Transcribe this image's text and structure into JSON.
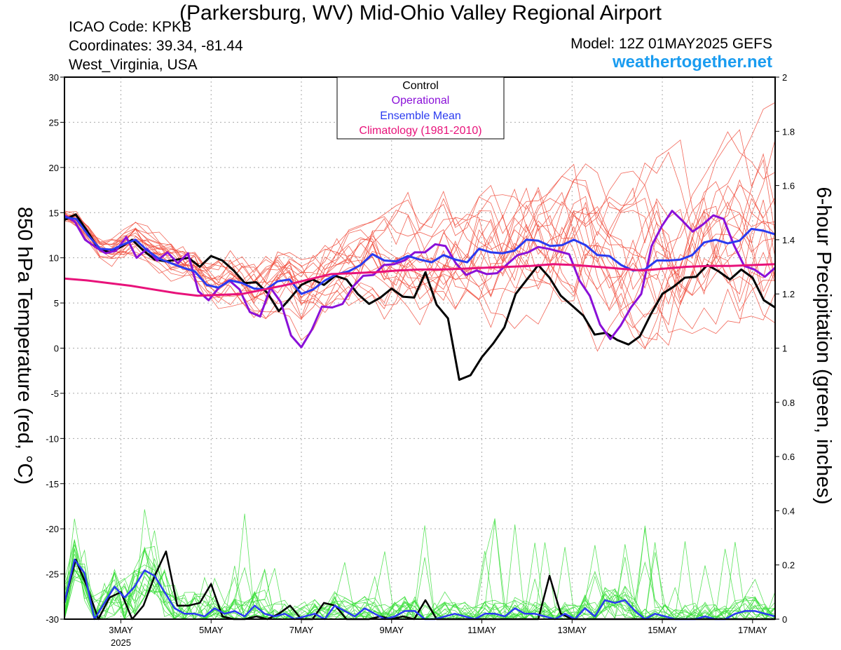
{
  "header": {
    "title": "(Parkersburg, WV) Mid-Ohio Valley Regional Airport",
    "icao": "ICAO Code: KPKB",
    "coordinates": "Coordinates: 39.34, -81.44",
    "location": "West_Virginia, USA",
    "model": "Model: 12Z 01MAY2025 GEFS",
    "site": "weathertogether.net"
  },
  "colors": {
    "member_temp": "#f04a3a",
    "member_precip": "#33dd33",
    "control": "#000000",
    "operational": "#8a10d8",
    "ensemble_mean": "#2a3af0",
    "climatology": "#e8127a"
  },
  "chart_data": {
    "type": "line",
    "x_axis": {
      "range": [
        "2025-05-01T18Z",
        "2025-05-17T12Z"
      ],
      "ticks": [
        {
          "x": "2025-05-03",
          "label": "3MAY",
          "sublabel": "2025"
        },
        {
          "x": "2025-05-05",
          "label": "5MAY"
        },
        {
          "x": "2025-05-07",
          "label": "7MAY"
        },
        {
          "x": "2025-05-09",
          "label": "9MAY"
        },
        {
          "x": "2025-05-11",
          "label": "11MAY"
        },
        {
          "x": "2025-05-13",
          "label": "13MAY"
        },
        {
          "x": "2025-05-15",
          "label": "15MAY"
        },
        {
          "x": "2025-05-17",
          "label": "17MAY"
        }
      ]
    },
    "y_left": {
      "label": "850 hPa Temperature (red, °C)",
      "range": [
        -30,
        30
      ],
      "ticks": [
        "30",
        "25",
        "20",
        "15",
        "10",
        "5",
        "0",
        "-5",
        "-10",
        "-15",
        "-20",
        "-25",
        "-30"
      ]
    },
    "y_right": {
      "label": "6-hour Precipitation (green, inches)",
      "range": [
        0,
        2
      ],
      "ticks": [
        "2",
        "1.8",
        "1.6",
        "1.4",
        "1.2",
        "1",
        "0.8",
        "0.6",
        "0.4",
        "0.2",
        "0"
      ]
    },
    "grid": true,
    "legend": {
      "placement": "top-center",
      "entries": [
        "Control",
        "Operational",
        "Ensemble Mean",
        "Climatology (1981-2010)"
      ]
    },
    "series": [
      {
        "name": "Control",
        "values": [
          14.2,
          14.8,
          13.0,
          11.0,
          10.6,
          11.2,
          12.0,
          10.8,
          9.8,
          9.6,
          9.8,
          10.0,
          9.0,
          10.2,
          9.7,
          8.6,
          7.2,
          7.3,
          6.1,
          4.1,
          5.5,
          7.0,
          7.6,
          7.0,
          8.0,
          7.6,
          6.0,
          4.9,
          5.6,
          6.6,
          5.7,
          5.6,
          8.4,
          4.8,
          3.3,
          -3.5,
          -3.0,
          -1.0,
          0.5,
          2.3,
          6.0,
          7.6,
          9.2,
          7.8,
          5.8,
          4.7,
          3.6,
          1.5,
          1.7,
          0.9,
          0.4,
          1.3,
          3.8,
          6.0,
          6.8,
          7.8,
          7.9,
          9.2,
          8.5,
          7.6,
          8.7,
          7.8,
          5.3,
          4.5
        ]
      },
      {
        "name": "Operational",
        "values": [
          14.7,
          14.0,
          12.0,
          11.2,
          10.5,
          10.8,
          12.3,
          10.0,
          11.0,
          9.7,
          10.6,
          9.4,
          10.5,
          6.3,
          5.3,
          6.7,
          7.5,
          6.5,
          4.0,
          3.5,
          6.7,
          5.1,
          1.4,
          0.1,
          2.0,
          4.6,
          4.5,
          4.9,
          6.8,
          8.0,
          8.1,
          9.2,
          9.3,
          9.7,
          10.6,
          10.6,
          11.5,
          11.3,
          9.4,
          8.1,
          8.6,
          8.2,
          8.3,
          9.3,
          10.3,
          10.6,
          11.2,
          11.0,
          10.7,
          10.4,
          7.5,
          5.8,
          2.6,
          1.0,
          2.5,
          4.5,
          6.0,
          11.3,
          13.5,
          15.2,
          14.1,
          12.9,
          13.7,
          14.7,
          14.3,
          11.4,
          9.1,
          8.7,
          7.9,
          8.9
        ]
      },
      {
        "name": "Ensemble Mean",
        "values": [
          14.5,
          14.3,
          12.5,
          11.0,
          10.9,
          11.5,
          12.0,
          10.8,
          9.9,
          9.4,
          8.9,
          8.5,
          7.0,
          6.7,
          7.5,
          7.2,
          6.6,
          6.5,
          7.4,
          7.6,
          6.0,
          6.5,
          7.5,
          8.2,
          8.5,
          9.2,
          10.4,
          9.7,
          9.6,
          10.2,
          9.8,
          9.5,
          10.3,
          9.8,
          9.5,
          11.0,
          10.6,
          10.5,
          10.8,
          12.0,
          11.9,
          11.3,
          11.4,
          12.0,
          11.4,
          10.3,
          10.2,
          9.2,
          8.6,
          8.7,
          9.7,
          9.7,
          9.8,
          10.3,
          11.7,
          12.0,
          11.6,
          11.9,
          13.2,
          13.0,
          12.6
        ]
      },
      {
        "name": "Climatology (1981-2010)",
        "values": [
          7.7,
          7.5,
          7.2,
          6.9,
          6.5,
          6.1,
          5.8,
          5.9,
          6.0,
          6.5,
          7.0,
          7.6,
          8.2,
          8.3,
          8.4,
          8.6,
          8.7,
          8.7,
          8.8,
          8.9,
          9.0,
          9.1,
          9.3,
          9.2,
          9.0,
          8.8,
          8.6,
          8.8,
          9.0,
          9.1,
          9.1,
          9.2,
          9.3
        ]
      },
      {
        "name": "Control precipitation",
        "values": [
          0.06,
          0.22,
          0.12,
          0.0,
          0.08,
          0.1,
          0.0,
          0.05,
          0.16,
          0.25,
          0.05,
          0.05,
          0.06,
          0.13,
          0.01,
          0.0,
          0.0,
          0.01,
          0.0,
          0.02,
          0.05,
          0.0,
          0.0,
          0.06,
          0.05,
          0.0,
          0.0,
          0.0,
          0.01,
          0.0,
          0.01,
          0.0,
          0.07,
          0.0,
          0.0,
          0.0,
          0.0,
          0.0,
          0.0,
          0.0,
          0.0,
          0.0,
          0.0,
          0.16,
          0.02,
          0.0,
          0.0,
          0.0,
          0.0,
          0.0,
          0.0,
          0.0,
          0.0,
          0.0,
          0.0,
          0.0,
          0.0,
          0.0,
          0.0,
          0.0,
          0.0,
          0.0,
          0.0,
          0.0
        ]
      },
      {
        "name": "Ensemble mean precipitation",
        "values": [
          0.06,
          0.22,
          0.17,
          0.0,
          0.06,
          0.12,
          0.08,
          0.12,
          0.18,
          0.16,
          0.1,
          0.04,
          0.02,
          0.02,
          0.01,
          0.04,
          0.02,
          0.03,
          0.01,
          0.05,
          0.02,
          0.01,
          0.02,
          0.0,
          0.01,
          0.02,
          0.0,
          0.05,
          0.03,
          0.01,
          0.04,
          0.02,
          0.0,
          0.01,
          0.03,
          0.03,
          0.0,
          0.0,
          0.01,
          0.02,
          0.01,
          0.0,
          0.02,
          0.02,
          0.01,
          0.04,
          0.02,
          0.02,
          0.01,
          0.0,
          0.02,
          0.0,
          0.04,
          0.01,
          0.07,
          0.06,
          0.07,
          0.03,
          0.0,
          0.02,
          0.01,
          0.0,
          0.0,
          0.0,
          0.01,
          0.0,
          0.0,
          0.02,
          0.03,
          0.03,
          0.02,
          0.01
        ]
      }
    ]
  }
}
